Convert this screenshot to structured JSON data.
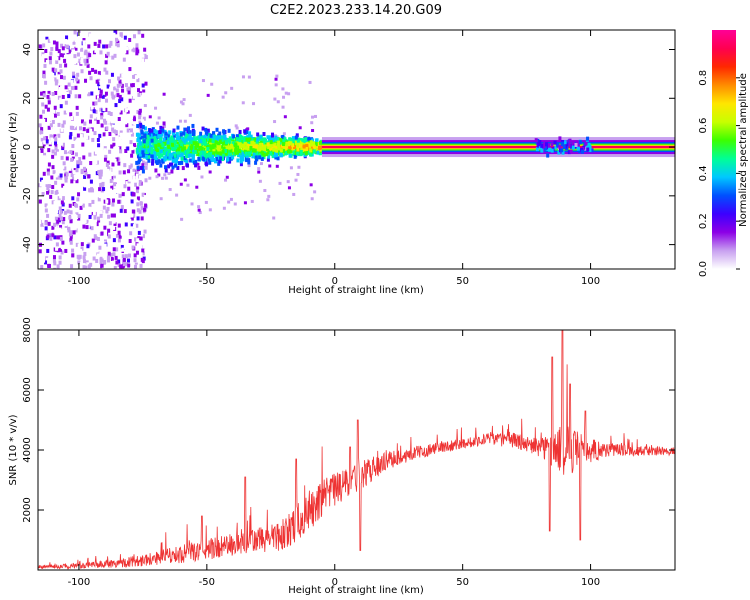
{
  "title": "C2E2.2023.233.14.20.G09",
  "chart_data": [
    {
      "type": "heatmap",
      "name": "spectrogram",
      "xlabel": "Height of straight line (km)",
      "ylabel": "Frequency (Hz)",
      "xlim": [
        -116,
        133
      ],
      "ylim": [
        -50,
        48
      ],
      "xticks": [
        -100,
        -50,
        0,
        50,
        100
      ],
      "yticks": [
        -40,
        -20,
        0,
        20,
        40
      ],
      "colorbar": {
        "label": "Normalized spectral amplitude",
        "range": [
          0,
          1
        ],
        "ticks": [
          "0.0",
          "0.2",
          "0.4",
          "0.6",
          "0.8"
        ],
        "colors": [
          "#ffffff",
          "#c8a0f0",
          "#8c00e6",
          "#3c00ff",
          "#0050ff",
          "#00c8ff",
          "#00ff96",
          "#3cff00",
          "#c8ff00",
          "#ffe600",
          "#ff8c00",
          "#ff2800",
          "#ff0050",
          "#ff0096"
        ]
      },
      "features": {
        "noise_region_x": [
          -116,
          -78
        ],
        "scattered_band": {
          "x": [
            -78,
            -5
          ],
          "half_width_hz": [
            12,
            4
          ]
        },
        "carrier_line": {
          "x": [
            -5,
            133
          ],
          "freq_hz": 0
        }
      }
    },
    {
      "type": "line",
      "name": "snr",
      "xlabel": "Height of straight line (km)",
      "ylabel": "SNR (10 * v/v)",
      "xlim": [
        -116,
        133
      ],
      "ylim": [
        0,
        8000
      ],
      "xticks": [
        -100,
        -50,
        0,
        50,
        100
      ],
      "yticks": [
        2000,
        4000,
        6000,
        8000
      ],
      "color": "#ee3333",
      "envelope": {
        "x": [
          -116,
          -100,
          -80,
          -60,
          -40,
          -20,
          -10,
          0,
          10,
          20,
          30,
          40,
          50,
          60,
          70,
          80,
          90,
          100,
          110,
          120,
          133
        ],
        "base": [
          100,
          120,
          250,
          500,
          800,
          1100,
          1900,
          2600,
          3100,
          3600,
          3850,
          4050,
          4200,
          4350,
          4300,
          4050,
          3900,
          3950,
          4000,
          3950,
          3950
        ],
        "noise": [
          60,
          80,
          180,
          300,
          400,
          500,
          700,
          600,
          500,
          300,
          220,
          200,
          180,
          200,
          250,
          300,
          900,
          400,
          200,
          160,
          140
        ]
      },
      "spikes": [
        {
          "x": 85,
          "y": 7100
        },
        {
          "x": 89,
          "y": 8000
        },
        {
          "x": 92,
          "y": 6200
        },
        {
          "x": 84,
          "y": 1300
        },
        {
          "x": 96,
          "y": 1000
        },
        {
          "x": 98,
          "y": 5300
        },
        {
          "x": 9,
          "y": 5000
        },
        {
          "x": 10,
          "y": 650
        },
        {
          "x": 6,
          "y": 4100
        },
        {
          "x": -15,
          "y": 3700
        },
        {
          "x": -35,
          "y": 3100
        },
        {
          "x": -52,
          "y": 1800
        }
      ]
    }
  ]
}
